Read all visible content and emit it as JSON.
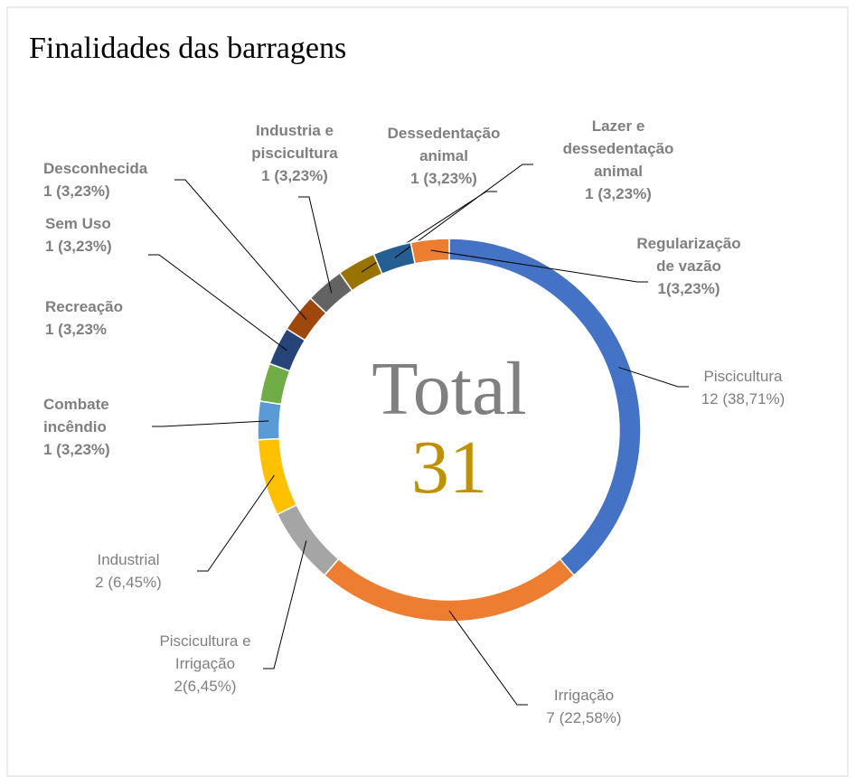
{
  "chart_data": {
    "type": "donut",
    "title": "Finalidades das  barragens",
    "center_label": "Total",
    "total": 31,
    "categories": [
      "Piscicultura",
      "Irrigação",
      "Piscicultura e\nIrrigação",
      "Industrial",
      "Combate\nincêndio",
      "Recreação",
      "Sem Uso",
      "Desconhecida",
      "Industria e\npiscicultura",
      "Dessedentação\nanimal",
      "Lazer e\ndessedentação\nanimal",
      "Regularização\nde vazão"
    ],
    "values": [
      12,
      7,
      2,
      2,
      1,
      1,
      1,
      1,
      1,
      1,
      1,
      1
    ],
    "value_labels": [
      "12 (38,71%)",
      "7 (22,58%)",
      "2(6,45%)",
      "2  (6,45%)",
      "1 (3,23%)",
      "1 (3,23%",
      "1 (3,23%)",
      "1 (3,23%)",
      "1 (3,23%)",
      "1 (3,23%)",
      "1 (3,23%)",
      "1(3,23%)"
    ],
    "colors": [
      "#4472c4",
      "#ed7d31",
      "#a5a5a5",
      "#ffc000",
      "#5b9bd5",
      "#70ad47",
      "#264478",
      "#9e480e",
      "#636363",
      "#997300",
      "#255e91",
      "#ed7d31"
    ]
  }
}
